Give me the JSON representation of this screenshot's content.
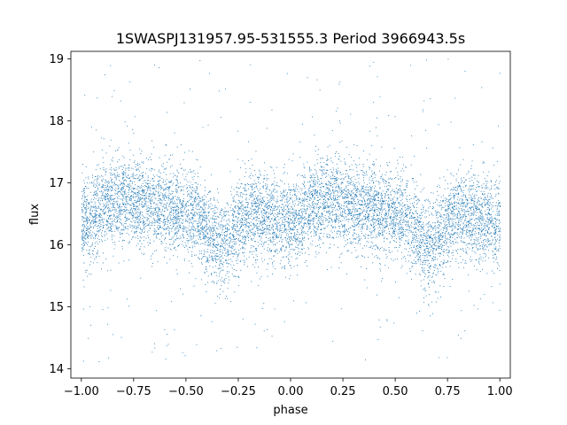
{
  "chart_data": {
    "type": "scatter",
    "title": "1SWASPJ131957.95-531555.3 Period 3966943.5s",
    "xlabel": "phase",
    "ylabel": "flux",
    "xlim": [
      -1.05,
      1.05
    ],
    "ylim": [
      13.85,
      19.12
    ],
    "xticks": [
      -1.0,
      -0.75,
      -0.5,
      -0.25,
      0.0,
      0.25,
      0.5,
      0.75,
      1.0
    ],
    "xtick_labels": [
      "−1.00",
      "−0.75",
      "−0.50",
      "−0.25",
      "0.00",
      "0.25",
      "0.50",
      "0.75",
      "1.00"
    ],
    "yticks": [
      14,
      15,
      16,
      17,
      18,
      19
    ],
    "ytick_labels": [
      "14",
      "15",
      "16",
      "17",
      "18",
      "19"
    ],
    "grid": false,
    "legend": "none",
    "marker_color": "#1f77b4",
    "series": [
      {
        "phase_range": [
          -1.0,
          1.0
        ],
        "flux_median_profile": [
          {
            "phase": 0.0,
            "flux": 16.35
          },
          {
            "phase": 0.05,
            "flux": 16.45
          },
          {
            "phase": 0.1,
            "flux": 16.65
          },
          {
            "phase": 0.18,
            "flux": 16.75
          },
          {
            "phase": 0.25,
            "flux": 16.7
          },
          {
            "phase": 0.35,
            "flux": 16.6
          },
          {
            "phase": 0.45,
            "flux": 16.55
          },
          {
            "phase": 0.55,
            "flux": 16.45
          },
          {
            "phase": 0.62,
            "flux": 16.15
          },
          {
            "phase": 0.66,
            "flux": 15.95
          },
          {
            "phase": 0.72,
            "flux": 16.2
          },
          {
            "phase": 0.8,
            "flux": 16.5
          },
          {
            "phase": 0.9,
            "flux": 16.45
          },
          {
            "phase": 1.0,
            "flux": 16.35
          }
        ],
        "flux_spread_sd": 0.35,
        "flux_min": 14.1,
        "flux_max": 19.0,
        "periodic_in_phase": 1.0
      }
    ]
  }
}
